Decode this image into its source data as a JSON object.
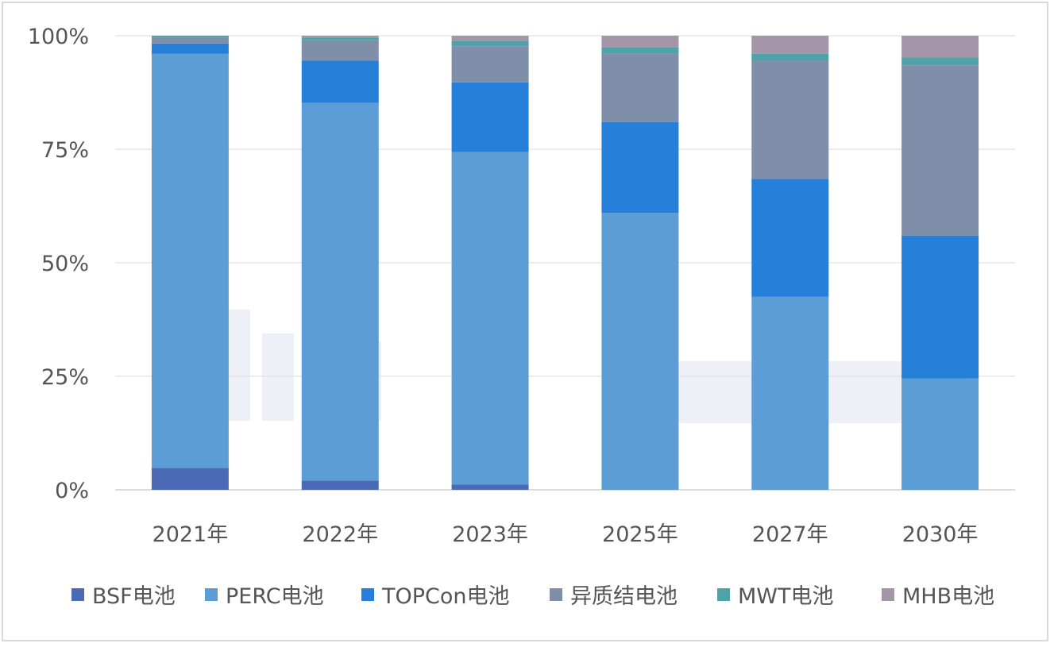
{
  "chart_data": {
    "type": "bar",
    "stacked": true,
    "percent": true,
    "categories": [
      "2021年",
      "2022年",
      "2023年",
      "2025年",
      "2027年",
      "2030年"
    ],
    "ylim": [
      0,
      100
    ],
    "yticks": [
      "0%",
      "25%",
      "50%",
      "75%",
      "100%"
    ],
    "grid": true,
    "legend_position": "bottom",
    "series": [
      {
        "name": "BSF电池",
        "color": "#4a6ab5",
        "values": [
          4.8,
          2.0,
          1.2,
          0,
          0,
          0
        ]
      },
      {
        "name": "PERC电池",
        "color": "#5d9dd5",
        "values": [
          91.2,
          83.2,
          73.2,
          61,
          42.5,
          24.5
        ]
      },
      {
        "name": "TOPCon电池",
        "color": "#2680d9",
        "values": [
          2.3,
          9.3,
          15.3,
          20,
          26,
          31.5
        ]
      },
      {
        "name": "异质结电池",
        "color": "#7f8ea9",
        "values": [
          1.2,
          4.5,
          8.0,
          15,
          26,
          37.5
        ]
      },
      {
        "name": "MWT电池",
        "color": "#4fa3a8",
        "values": [
          0.5,
          0.6,
          1.2,
          1.5,
          1.5,
          1.7
        ]
      },
      {
        "name": "MHB电池",
        "color": "#a595a8",
        "values": [
          0,
          0.4,
          1.1,
          2.5,
          4.0,
          4.8
        ]
      }
    ]
  }
}
